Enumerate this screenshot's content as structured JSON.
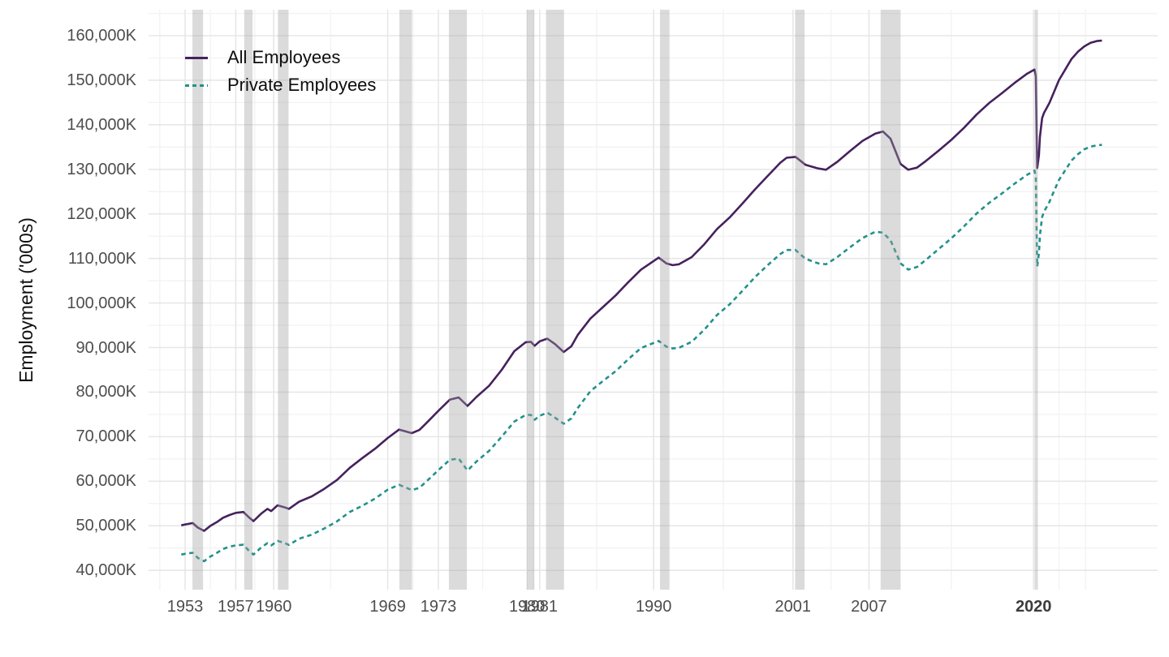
{
  "colors": {
    "all_employees_line": "#45215d",
    "private_employees_line": "#21918c",
    "recession_band": "rgba(160,160,160,0.38)",
    "grid_major": "#e7e7e7",
    "grid_minor": "#f3f3f3",
    "tick_text": "#4d4d4d"
  },
  "y_axis": {
    "title": "Employment ('000s)",
    "ticks": [
      {
        "label": "160,000K",
        "value": 160000
      },
      {
        "label": "150,000K",
        "value": 150000
      },
      {
        "label": "140,000K",
        "value": 140000
      },
      {
        "label": "130,000K",
        "value": 130000
      },
      {
        "label": "120,000K",
        "value": 120000
      },
      {
        "label": "110,000K",
        "value": 110000
      },
      {
        "label": "100,000K",
        "value": 100000
      },
      {
        "label": "90,000K",
        "value": 90000
      },
      {
        "label": "80,000K",
        "value": 80000
      },
      {
        "label": "70,000K",
        "value": 70000
      },
      {
        "label": "60,000K",
        "value": 60000
      },
      {
        "label": "50,000K",
        "value": 50000
      },
      {
        "label": "40,000K",
        "value": 40000
      }
    ]
  },
  "x_axis": {
    "ticks": [
      {
        "label": "1953",
        "year": 1953,
        "bold": false
      },
      {
        "label": "1957",
        "year": 1957,
        "bold": false
      },
      {
        "label": "1960",
        "year": 1960,
        "bold": false
      },
      {
        "label": "1969",
        "year": 1969,
        "bold": false
      },
      {
        "label": "1973",
        "year": 1973,
        "bold": false
      },
      {
        "label": "1980",
        "year": 1980,
        "bold": false
      },
      {
        "label": "1981",
        "year": 1981,
        "bold": false
      },
      {
        "label": "1990",
        "year": 1990,
        "bold": false
      },
      {
        "label": "2001",
        "year": 2001,
        "bold": false
      },
      {
        "label": "2007",
        "year": 2007,
        "bold": false
      },
      {
        "label": "2020",
        "year": 2020,
        "bold": true
      }
    ]
  },
  "legend": {
    "items": [
      {
        "label": "All Employees",
        "style": "solid"
      },
      {
        "label": "Private Employees",
        "style": "dashed"
      }
    ]
  },
  "chart_data": {
    "type": "line",
    "title": "",
    "xlabel": "",
    "ylabel": "Employment ('000s)",
    "x_range": [
      1950,
      2030
    ],
    "ylim": [
      35600,
      165800
    ],
    "grid": "on",
    "legend_position": "top-left-inside",
    "major_gridline_values_y": [
      40000,
      50000,
      60000,
      70000,
      80000,
      90000,
      100000,
      110000,
      120000,
      130000,
      140000,
      150000,
      160000
    ],
    "minor_gridline_values_y": [
      45000,
      55000,
      65000,
      75000,
      85000,
      95000,
      105000,
      115000,
      125000,
      135000,
      145000,
      155000,
      165000
    ],
    "major_gridline_years_x": [
      1953,
      1957,
      1960,
      1969,
      1973,
      1980,
      1981,
      1990,
      2001,
      2007,
      2020
    ],
    "minor_gridline_years_x": [
      1951,
      1955,
      1958.5,
      1964.5,
      1971,
      1976.5,
      1980.5,
      1985.5,
      1995.5,
      2004,
      2013.5,
      2022,
      2024.1
    ],
    "recessions": [
      {
        "start": 1953.58,
        "end": 1954.42
      },
      {
        "start": 1957.67,
        "end": 1958.33
      },
      {
        "start": 1960.33,
        "end": 1961.17
      },
      {
        "start": 1969.92,
        "end": 1970.92
      },
      {
        "start": 1973.83,
        "end": 1975.25
      },
      {
        "start": 1980.0,
        "end": 1980.58
      },
      {
        "start": 1981.5,
        "end": 1982.92
      },
      {
        "start": 1990.5,
        "end": 1991.25
      },
      {
        "start": 2001.17,
        "end": 2001.92
      },
      {
        "start": 2007.92,
        "end": 2009.5
      },
      {
        "start": 2020.08,
        "end": 2020.33
      }
    ],
    "series": [
      {
        "name": "All Employees",
        "color": "#45215d",
        "line_style": "solid",
        "points": [
          [
            1952.7,
            50100
          ],
          [
            1953.0,
            50300
          ],
          [
            1953.6,
            50600
          ],
          [
            1954.0,
            49600
          ],
          [
            1954.5,
            48850
          ],
          [
            1955.0,
            50000
          ],
          [
            1955.5,
            50800
          ],
          [
            1956.0,
            51800
          ],
          [
            1956.5,
            52400
          ],
          [
            1957.0,
            52900
          ],
          [
            1957.6,
            53100
          ],
          [
            1958.0,
            52000
          ],
          [
            1958.4,
            51050
          ],
          [
            1959.0,
            52700
          ],
          [
            1959.5,
            53800
          ],
          [
            1959.8,
            53300
          ],
          [
            1960.3,
            54600
          ],
          [
            1960.8,
            54200
          ],
          [
            1961.2,
            53800
          ],
          [
            1962.0,
            55400
          ],
          [
            1963.0,
            56600
          ],
          [
            1964.0,
            58300
          ],
          [
            1965.0,
            60300
          ],
          [
            1966.0,
            63000
          ],
          [
            1967.0,
            65200
          ],
          [
            1968.0,
            67300
          ],
          [
            1969.0,
            69700
          ],
          [
            1969.9,
            71600
          ],
          [
            1970.5,
            71100
          ],
          [
            1970.9,
            70800
          ],
          [
            1971.5,
            71500
          ],
          [
            1972.0,
            72900
          ],
          [
            1973.0,
            75800
          ],
          [
            1973.9,
            78300
          ],
          [
            1974.6,
            78800
          ],
          [
            1975.3,
            76900
          ],
          [
            1976.0,
            78900
          ],
          [
            1977.0,
            81400
          ],
          [
            1978.0,
            85000
          ],
          [
            1979.0,
            89200
          ],
          [
            1979.9,
            91200
          ],
          [
            1980.3,
            91300
          ],
          [
            1980.6,
            90400
          ],
          [
            1981.0,
            91400
          ],
          [
            1981.6,
            92000
          ],
          [
            1982.2,
            90800
          ],
          [
            1982.9,
            89000
          ],
          [
            1983.5,
            90300
          ],
          [
            1984.0,
            92800
          ],
          [
            1985.0,
            96500
          ],
          [
            1986.0,
            99100
          ],
          [
            1987.0,
            101700
          ],
          [
            1988.0,
            104700
          ],
          [
            1989.0,
            107500
          ],
          [
            1990.4,
            110200
          ],
          [
            1991.0,
            108900
          ],
          [
            1991.5,
            108500
          ],
          [
            1992.0,
            108700
          ],
          [
            1993.0,
            110300
          ],
          [
            1994.0,
            113200
          ],
          [
            1995.0,
            116600
          ],
          [
            1996.0,
            119200
          ],
          [
            1997.0,
            122300
          ],
          [
            1998.0,
            125500
          ],
          [
            1999.0,
            128500
          ],
          [
            2000.0,
            131500
          ],
          [
            2000.5,
            132600
          ],
          [
            2001.2,
            132800
          ],
          [
            2002.0,
            131000
          ],
          [
            2003.0,
            130200
          ],
          [
            2003.6,
            129900
          ],
          [
            2004.5,
            131700
          ],
          [
            2005.5,
            134100
          ],
          [
            2006.5,
            136400
          ],
          [
            2007.5,
            138000
          ],
          [
            2008.1,
            138500
          ],
          [
            2008.7,
            136900
          ],
          [
            2009.5,
            131200
          ],
          [
            2010.1,
            129900
          ],
          [
            2010.8,
            130400
          ],
          [
            2011.5,
            131900
          ],
          [
            2012.5,
            134200
          ],
          [
            2013.5,
            136600
          ],
          [
            2014.5,
            139300
          ],
          [
            2015.5,
            142300
          ],
          [
            2016.5,
            144900
          ],
          [
            2017.5,
            147100
          ],
          [
            2018.5,
            149400
          ],
          [
            2019.5,
            151500
          ],
          [
            2020.08,
            152400
          ],
          [
            2020.17,
            150900
          ],
          [
            2020.29,
            130300
          ],
          [
            2020.42,
            133200
          ],
          [
            2020.5,
            137300
          ],
          [
            2020.67,
            141500
          ],
          [
            2020.83,
            142700
          ],
          [
            2021.0,
            143600
          ],
          [
            2021.25,
            144900
          ],
          [
            2021.5,
            146600
          ],
          [
            2021.75,
            148300
          ],
          [
            2022.0,
            150000
          ],
          [
            2022.5,
            152400
          ],
          [
            2023.0,
            154800
          ],
          [
            2023.5,
            156400
          ],
          [
            2024.0,
            157600
          ],
          [
            2024.5,
            158400
          ],
          [
            2025.0,
            158800
          ],
          [
            2025.4,
            158900
          ]
        ]
      },
      {
        "name": "Private Employees",
        "color": "#21918c",
        "line_style": "dashed",
        "points": [
          [
            1952.7,
            43550
          ],
          [
            1953.0,
            43700
          ],
          [
            1953.6,
            43950
          ],
          [
            1954.0,
            42800
          ],
          [
            1954.5,
            42050
          ],
          [
            1955.0,
            43100
          ],
          [
            1955.5,
            43900
          ],
          [
            1956.0,
            44800
          ],
          [
            1956.5,
            45300
          ],
          [
            1957.0,
            45600
          ],
          [
            1957.6,
            45750
          ],
          [
            1958.0,
            44500
          ],
          [
            1958.4,
            43550
          ],
          [
            1959.0,
            45100
          ],
          [
            1959.5,
            46100
          ],
          [
            1959.8,
            45600
          ],
          [
            1960.3,
            46600
          ],
          [
            1960.8,
            46200
          ],
          [
            1961.2,
            45700
          ],
          [
            1962.0,
            47100
          ],
          [
            1963.0,
            48000
          ],
          [
            1964.0,
            49400
          ],
          [
            1965.0,
            51000
          ],
          [
            1966.0,
            53100
          ],
          [
            1967.0,
            54500
          ],
          [
            1968.0,
            56100
          ],
          [
            1969.0,
            58100
          ],
          [
            1969.9,
            59200
          ],
          [
            1970.5,
            58500
          ],
          [
            1970.9,
            58000
          ],
          [
            1971.5,
            58500
          ],
          [
            1972.0,
            59800
          ],
          [
            1973.0,
            62500
          ],
          [
            1973.9,
            64800
          ],
          [
            1974.6,
            65100
          ],
          [
            1975.3,
            62400
          ],
          [
            1976.0,
            64400
          ],
          [
            1977.0,
            66800
          ],
          [
            1978.0,
            70000
          ],
          [
            1979.0,
            73400
          ],
          [
            1979.9,
            74900
          ],
          [
            1980.3,
            74900
          ],
          [
            1980.6,
            73800
          ],
          [
            1981.0,
            74700
          ],
          [
            1981.6,
            75400
          ],
          [
            1982.2,
            74300
          ],
          [
            1982.9,
            72900
          ],
          [
            1983.5,
            74100
          ],
          [
            1984.0,
            76400
          ],
          [
            1985.0,
            80200
          ],
          [
            1986.0,
            82500
          ],
          [
            1987.0,
            84700
          ],
          [
            1988.0,
            87400
          ],
          [
            1989.0,
            89900
          ],
          [
            1990.4,
            91500
          ],
          [
            1991.0,
            90200
          ],
          [
            1991.5,
            89800
          ],
          [
            1992.0,
            89950
          ],
          [
            1993.0,
            91300
          ],
          [
            1994.0,
            94000
          ],
          [
            1995.0,
            97300
          ],
          [
            1996.0,
            99700
          ],
          [
            1997.0,
            102700
          ],
          [
            1998.0,
            105800
          ],
          [
            1999.0,
            108500
          ],
          [
            2000.0,
            111000
          ],
          [
            2000.5,
            111900
          ],
          [
            2001.2,
            111900
          ],
          [
            2002.0,
            109900
          ],
          [
            2003.0,
            108900
          ],
          [
            2003.6,
            108700
          ],
          [
            2004.5,
            110300
          ],
          [
            2005.5,
            112500
          ],
          [
            2006.5,
            114600
          ],
          [
            2007.5,
            116000
          ],
          [
            2008.1,
            115800
          ],
          [
            2008.7,
            114100
          ],
          [
            2009.5,
            108900
          ],
          [
            2010.1,
            107500
          ],
          [
            2010.8,
            108100
          ],
          [
            2011.5,
            109700
          ],
          [
            2012.5,
            112100
          ],
          [
            2013.5,
            114500
          ],
          [
            2014.5,
            117200
          ],
          [
            2015.5,
            120100
          ],
          [
            2016.5,
            122500
          ],
          [
            2017.5,
            124600
          ],
          [
            2018.5,
            126800
          ],
          [
            2019.5,
            128800
          ],
          [
            2020.08,
            129700
          ],
          [
            2020.17,
            128200
          ],
          [
            2020.29,
            108200
          ],
          [
            2020.42,
            111200
          ],
          [
            2020.5,
            115200
          ],
          [
            2020.67,
            119300
          ],
          [
            2020.83,
            120500
          ],
          [
            2021.0,
            121400
          ],
          [
            2021.25,
            122700
          ],
          [
            2021.5,
            124400
          ],
          [
            2021.75,
            126000
          ],
          [
            2022.0,
            127600
          ],
          [
            2022.5,
            129800
          ],
          [
            2023.0,
            132000
          ],
          [
            2023.5,
            133400
          ],
          [
            2024.0,
            134500
          ],
          [
            2024.5,
            135100
          ],
          [
            2025.0,
            135400
          ],
          [
            2025.4,
            135500
          ]
        ]
      }
    ]
  }
}
